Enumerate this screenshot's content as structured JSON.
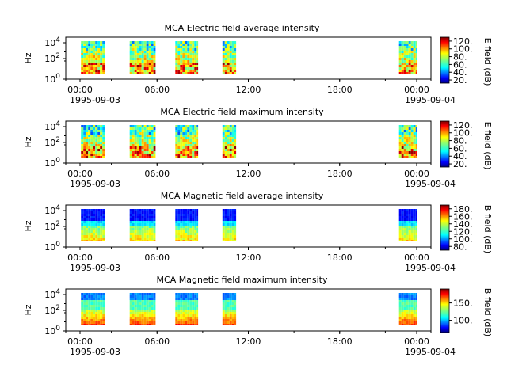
{
  "chart_data": [
    {
      "type": "heatmap",
      "title": "MCA  Electric field average intensity",
      "ylabel": "Hz",
      "yscale": "log",
      "y_ticks": [
        "10^0",
        "10^2",
        "10^4"
      ],
      "x_ticks": [
        "00:00",
        "06:00",
        "12:00",
        "18:00",
        "00:00"
      ],
      "x_date_labels": [
        "1995-09-03",
        "1995-09-04"
      ],
      "colorbar": {
        "label": "E field (dB)",
        "range": [
          12,
          130
        ],
        "ticks": [
          20,
          40,
          60,
          80,
          100,
          120
        ],
        "colormap": "jet"
      },
      "data_intervals_utc_hours": [
        [
          1.0,
          2.6
        ],
        [
          4.2,
          5.9
        ],
        [
          7.2,
          8.7
        ],
        [
          10.3,
          11.2
        ],
        [
          21.9,
          23.1
        ]
      ],
      "intensity_profile": "mixed green-yellow, red bursts at low frequencies"
    },
    {
      "type": "heatmap",
      "title": "MCA  Electric field maximum intensity",
      "ylabel": "Hz",
      "yscale": "log",
      "y_ticks": [
        "10^0",
        "10^2",
        "10^4"
      ],
      "x_ticks": [
        "00:00",
        "06:00",
        "12:00",
        "18:00",
        "00:00"
      ],
      "x_date_labels": [
        "1995-09-03",
        "1995-09-04"
      ],
      "colorbar": {
        "label": "E field (dB)",
        "range": [
          12,
          130
        ],
        "ticks": [
          20,
          40,
          60,
          80,
          100,
          120
        ],
        "colormap": "jet"
      },
      "data_intervals_utc_hours": [
        [
          1.0,
          2.6
        ],
        [
          4.2,
          5.9
        ],
        [
          7.2,
          8.7
        ],
        [
          10.3,
          11.2
        ],
        [
          21.9,
          23.1
        ]
      ],
      "intensity_profile": "green-yellow with orange/red patches"
    },
    {
      "type": "heatmap",
      "title": "MCA  Magnetic field average intensity",
      "ylabel": "Hz",
      "yscale": "log",
      "y_ticks": [
        "10^0",
        "10^2",
        "10^4"
      ],
      "x_ticks": [
        "00:00",
        "06:00",
        "12:00",
        "18:00",
        "00:00"
      ],
      "x_date_labels": [
        "1995-09-03",
        "1995-09-04"
      ],
      "colorbar": {
        "label": "B field (dB)",
        "range": [
          70,
          190
        ],
        "ticks": [
          80,
          100,
          120,
          140,
          160,
          180
        ],
        "colormap": "jet"
      },
      "data_intervals_utc_hours": [
        [
          1.0,
          2.6
        ],
        [
          4.2,
          5.9
        ],
        [
          7.2,
          8.7
        ],
        [
          10.3,
          11.2
        ],
        [
          21.9,
          23.1
        ]
      ],
      "intensity_profile": "blue at high frequencies, green/yellow at low frequencies"
    },
    {
      "type": "heatmap",
      "title": "MCA  Magnetic field maximum intensity",
      "ylabel": "Hz",
      "yscale": "log",
      "y_ticks": [
        "10^0",
        "10^2",
        "10^4"
      ],
      "x_ticks": [
        "00:00",
        "06:00",
        "12:00",
        "18:00",
        "00:00"
      ],
      "x_date_labels": [
        "1995-09-03",
        "1995-09-04"
      ],
      "colorbar": {
        "label": "B field (dB)",
        "range": [
          65,
          190
        ],
        "ticks": [
          100,
          150
        ],
        "colormap": "jet"
      },
      "data_intervals_utc_hours": [
        [
          1.0,
          2.6
        ],
        [
          4.2,
          5.9
        ],
        [
          7.2,
          8.7
        ],
        [
          10.3,
          11.2
        ],
        [
          21.9,
          23.1
        ]
      ],
      "intensity_profile": "blue at top, green middle, yellow/orange at low frequencies"
    }
  ]
}
